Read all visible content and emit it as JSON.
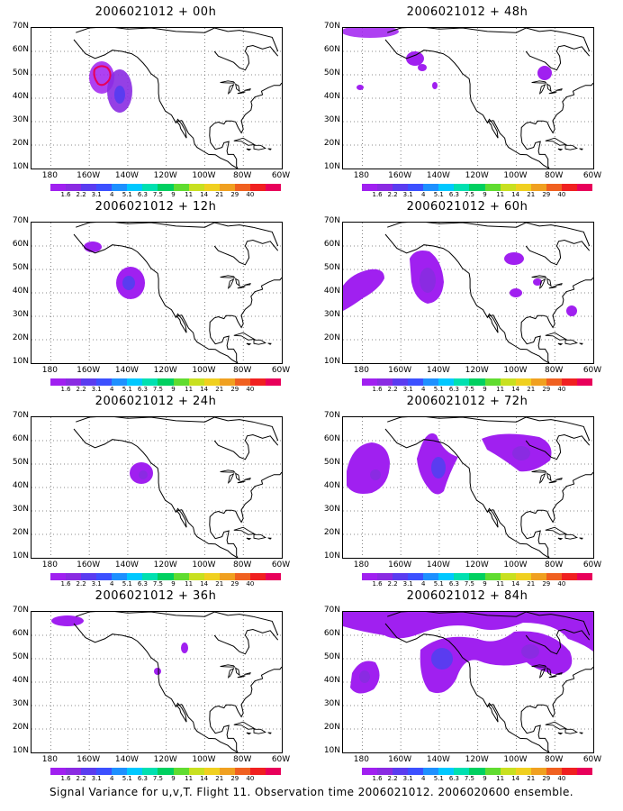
{
  "panels": [
    {
      "title": "2006021012 + 00h"
    },
    {
      "title": "2006021012 + 48h"
    },
    {
      "title": "2006021012 + 12h"
    },
    {
      "title": "2006021012 + 60h"
    },
    {
      "title": "2006021012 + 24h"
    },
    {
      "title": "2006021012 + 72h"
    },
    {
      "title": "2006021012 + 36h"
    },
    {
      "title": "2006021012 + 84h"
    }
  ],
  "y_axis_labels": [
    "70N",
    "60N",
    "50N",
    "40N",
    "30N",
    "20N",
    "10N"
  ],
  "x_axis_labels": [
    "180",
    "160W",
    "140W",
    "120W",
    "100W",
    "80W",
    "60W"
  ],
  "colorbar": {
    "labels": [
      "1.6",
      "2.2",
      "3.1",
      "4",
      "5.1",
      "6.3",
      "7.5",
      "9",
      "11",
      "14",
      "21",
      "29",
      "40"
    ],
    "colors": [
      "#a020f0",
      "#8a2be2",
      "#5a3cf0",
      "#3c50ff",
      "#1e90ff",
      "#00c8ff",
      "#00e0b0",
      "#00d060",
      "#60dc30",
      "#c8e020",
      "#f0d020",
      "#f0a020",
      "#f06020",
      "#f02020",
      "#e8005a"
    ]
  },
  "caption": "Signal Variance for u,v,T. Flight 11. Observation time 2006021012. 2006020600 ensemble.",
  "map_extent": {
    "lon": [
      -190,
      -60
    ],
    "lat": [
      10,
      70
    ]
  }
}
